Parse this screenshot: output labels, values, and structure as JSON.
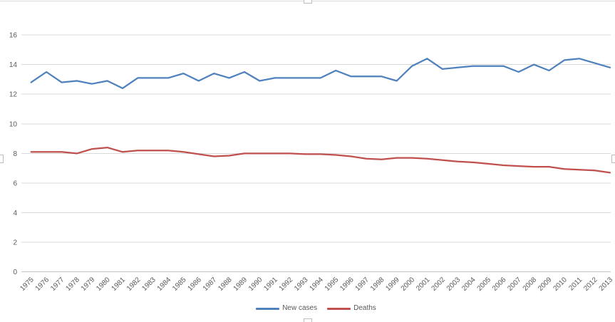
{
  "chart": {
    "background": "#FFFFFF",
    "selection_border_color": "#DCDCDC",
    "gridline_color": "#D9D9D9",
    "axis_line_color": "#C6C6C6",
    "axis_label_color": "#595959",
    "y_ticks": [
      0,
      2,
      4,
      6,
      8,
      10,
      12,
      14,
      16
    ],
    "legend": {
      "position": "bottom",
      "items": [
        {
          "label": "New cases",
          "color": "#4F81BD"
        },
        {
          "label": "Deaths",
          "color": "#C0504D"
        }
      ]
    }
  },
  "chart_data": {
    "type": "line",
    "title": "",
    "xlabel": "",
    "ylabel": "",
    "ylim": [
      0,
      16
    ],
    "ytick_step": 2,
    "grid": true,
    "legend_position": "bottom",
    "x": [
      1975,
      1976,
      1977,
      1978,
      1979,
      1980,
      1981,
      1982,
      1983,
      1984,
      1985,
      1986,
      1987,
      1988,
      1989,
      1990,
      1991,
      1992,
      1993,
      1994,
      1995,
      1996,
      1997,
      1998,
      1999,
      2000,
      2001,
      2002,
      2003,
      2004,
      2005,
      2006,
      2007,
      2008,
      2009,
      2010,
      2011,
      2012,
      2013
    ],
    "series": [
      {
        "name": "New cases",
        "color": "#4F81BD",
        "values": [
          12.8,
          13.5,
          12.8,
          12.9,
          12.7,
          12.9,
          12.4,
          13.1,
          13.1,
          13.1,
          13.4,
          12.9,
          13.4,
          13.1,
          13.5,
          12.9,
          13.1,
          13.1,
          13.1,
          13.1,
          13.6,
          13.2,
          13.2,
          13.2,
          12.9,
          13.9,
          14.4,
          13.7,
          13.8,
          13.9,
          13.9,
          13.9,
          13.5,
          14.0,
          13.6,
          14.3,
          14.4,
          14.1,
          13.8
        ]
      },
      {
        "name": "Deaths",
        "color": "#C0504D",
        "values": [
          8.1,
          8.1,
          8.1,
          8.0,
          8.3,
          8.4,
          8.1,
          8.2,
          8.2,
          8.2,
          8.1,
          7.95,
          7.8,
          7.85,
          8.0,
          8.0,
          8.0,
          8.0,
          7.95,
          7.95,
          7.9,
          7.8,
          7.65,
          7.6,
          7.7,
          7.7,
          7.65,
          7.55,
          7.45,
          7.4,
          7.3,
          7.2,
          7.15,
          7.1,
          7.1,
          6.95,
          6.9,
          6.85,
          6.7
        ]
      }
    ]
  }
}
